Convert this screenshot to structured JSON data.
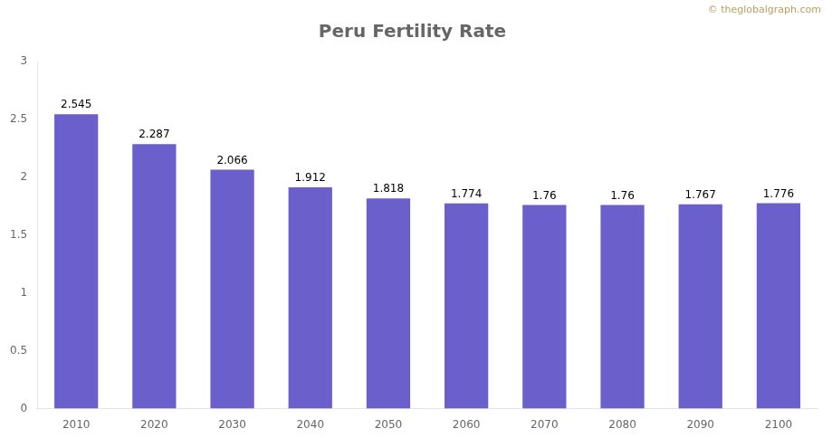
{
  "chart_data": {
    "type": "bar",
    "title": "Peru Fertility Rate",
    "categories": [
      "2010",
      "2020",
      "2030",
      "2040",
      "2050",
      "2060",
      "2070",
      "2080",
      "2090",
      "2100"
    ],
    "values": [
      2.545,
      2.287,
      2.066,
      1.912,
      1.818,
      1.774,
      1.76,
      1.76,
      1.767,
      1.776
    ],
    "color": "#6B5FCC",
    "ylim": [
      0,
      3
    ],
    "yticks": [
      0,
      0.5,
      1,
      1.5,
      2,
      2.5,
      3
    ],
    "grid": false,
    "data_labels": true,
    "annotations": [
      "© theglobalgraph.com"
    ]
  }
}
